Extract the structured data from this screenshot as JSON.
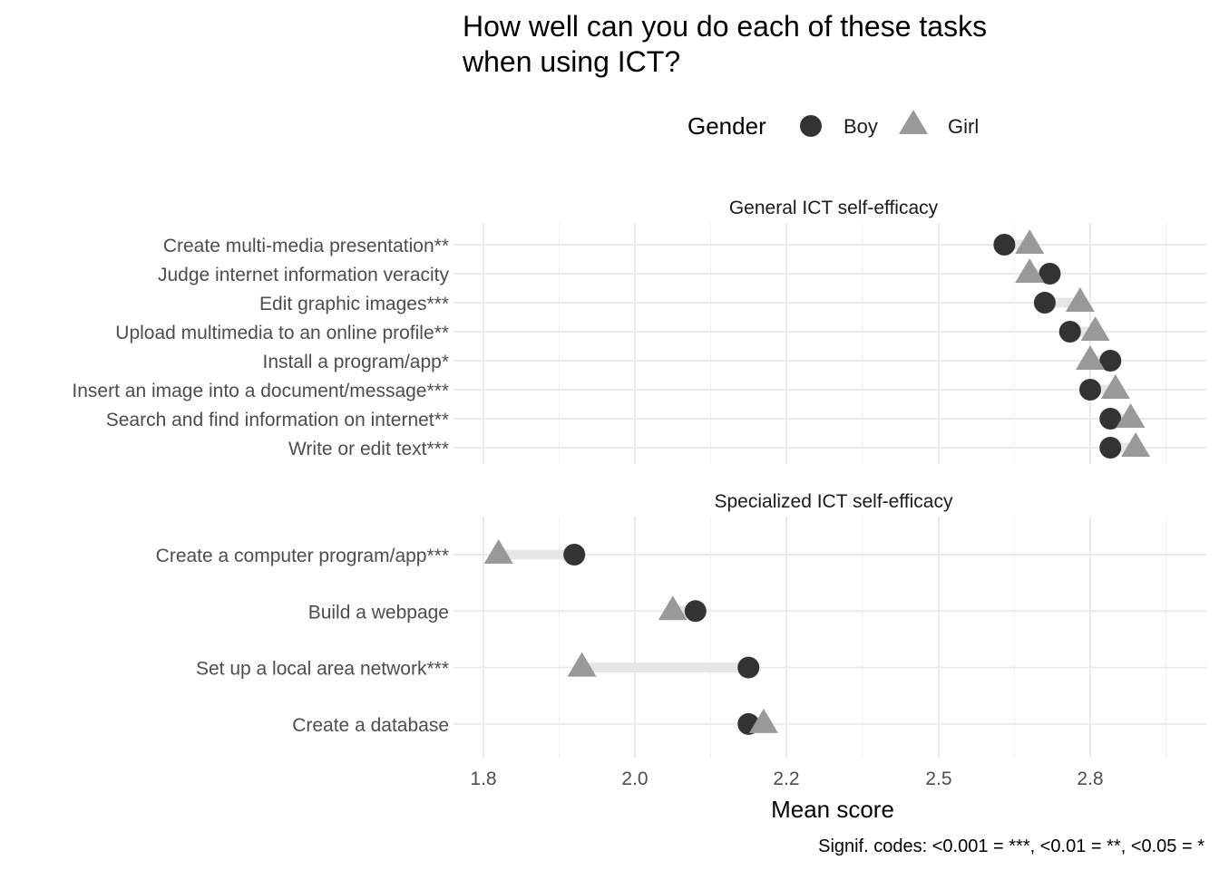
{
  "chart_data": {
    "type": "dot-dumbbell",
    "title": "How well can you do each of these tasks\nwhen using ICT?",
    "xlabel": "Mean score",
    "ylabel": "",
    "xlim": [
      1.8,
      2.9
    ],
    "x_ticks": [
      "1.8",
      "2.0",
      "2.2",
      "2.5",
      "2.8"
    ],
    "x_tick_values": [
      1.8,
      2.0,
      2.2,
      2.5,
      2.8
    ],
    "grid": true,
    "legend": {
      "title": "Gender",
      "position": "top",
      "entries": [
        {
          "name": "Boy",
          "shape": "circle",
          "color": "#333333"
        },
        {
          "name": "Girl",
          "shape": "triangle",
          "color": "#999999"
        }
      ]
    },
    "caption": "Signif. codes: <0.001 = ***, <0.01 = **, <0.05 = *",
    "panels": [
      {
        "label": "General ICT self-efficacy",
        "categories": [
          "Create multi-media presentation**",
          "Judge internet information veracity",
          "Edit graphic images***",
          "Upload multimedia to an online profile**",
          "Install a program/app*",
          "Insert an image into a document/message***",
          "Search and find information on internet**",
          "Write or edit text***"
        ],
        "series": [
          {
            "name": "Boy",
            "values": [
              2.63,
              2.72,
              2.71,
              2.76,
              2.84,
              2.8,
              2.84,
              2.84
            ]
          },
          {
            "name": "Girl",
            "values": [
              2.68,
              2.68,
              2.78,
              2.81,
              2.8,
              2.85,
              2.88,
              2.89
            ]
          }
        ]
      },
      {
        "label": "Specialized ICT self-efficacy",
        "categories": [
          "Create a computer program/app***",
          "Build a webpage",
          "Set up a local area network***",
          "Create a database"
        ],
        "series": [
          {
            "name": "Boy",
            "values": [
              1.92,
              2.08,
              2.15,
              2.15
            ]
          },
          {
            "name": "Girl",
            "values": [
              1.82,
              2.05,
              1.93,
              2.17
            ]
          }
        ]
      }
    ],
    "colors": {
      "boy": "#333333",
      "girl": "#999999",
      "segment": "#e6e6e6"
    }
  }
}
